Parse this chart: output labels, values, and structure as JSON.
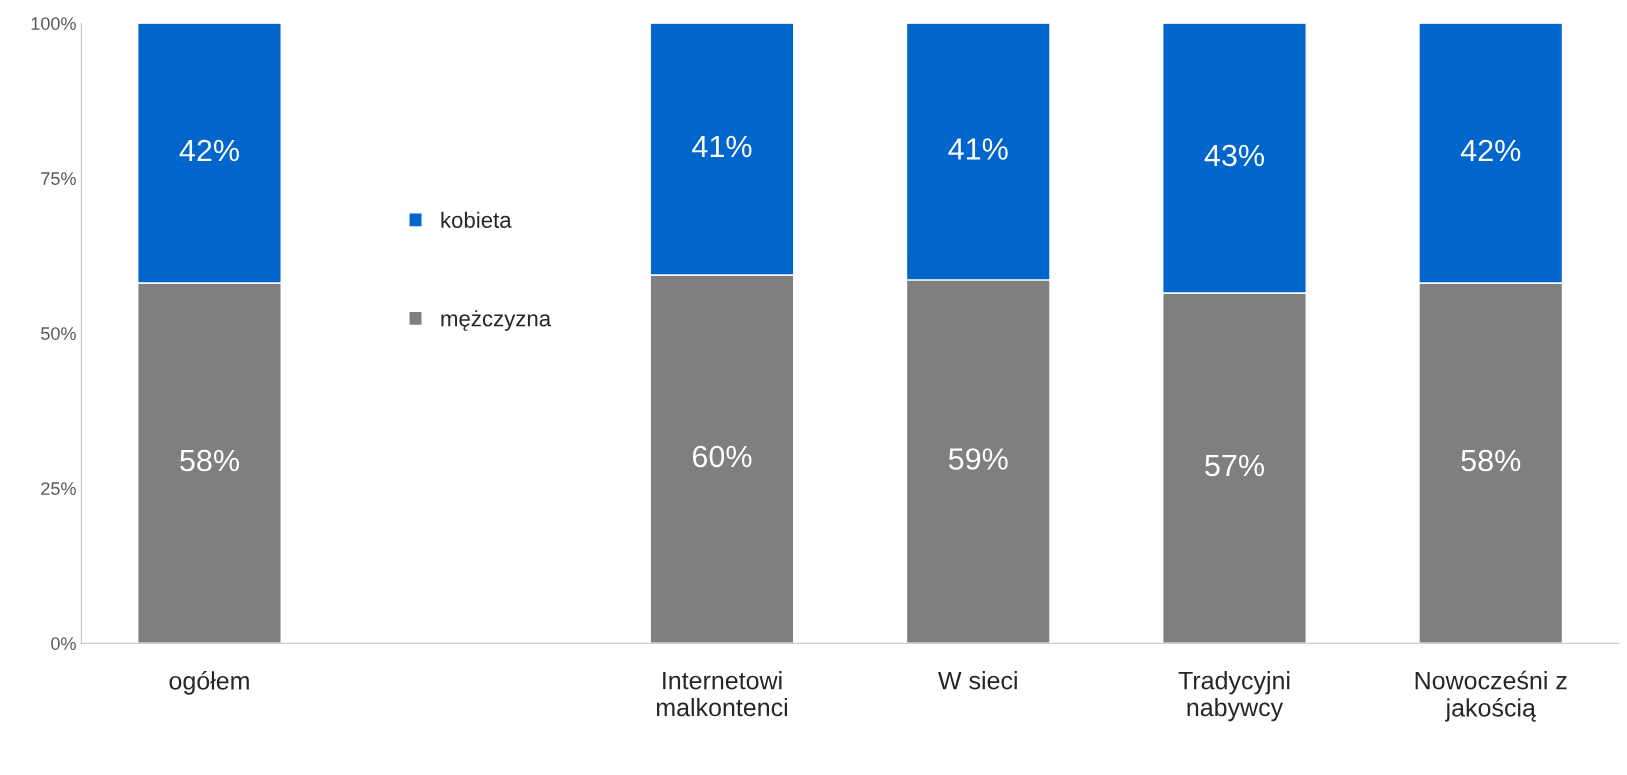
{
  "chart_data": {
    "type": "bar",
    "stacked": true,
    "categories": [
      "ogółem",
      null,
      "Internetowi\nmalkontenci",
      "W sieci",
      "Tradycyjni\nnabywcy",
      "Nowocześni z\njakością"
    ],
    "series": [
      {
        "name": "mężczyzna",
        "color": "#7f7f7f",
        "values": [
          58.1,
          null,
          59.4,
          58.6,
          56.5,
          58.1
        ]
      },
      {
        "name": "kobieta",
        "color": "#0066cc",
        "values": [
          41.9,
          null,
          40.6,
          41.4,
          43.5,
          41.9
        ]
      }
    ],
    "ylim": [
      0,
      100
    ],
    "yticks": [
      {
        "value": 0,
        "label": "0%"
      },
      {
        "value": 25,
        "label": "25%"
      },
      {
        "value": 50,
        "label": "50%"
      },
      {
        "value": 75,
        "label": "75%"
      },
      {
        "value": 100,
        "label": "100%"
      }
    ],
    "value_labels": [
      [
        "58%",
        null,
        "60%",
        "59%",
        "57%",
        "58%"
      ],
      [
        "42%",
        null,
        "41%",
        "41%",
        "43%",
        "42%"
      ]
    ],
    "legend": "center left",
    "grid": false
  }
}
